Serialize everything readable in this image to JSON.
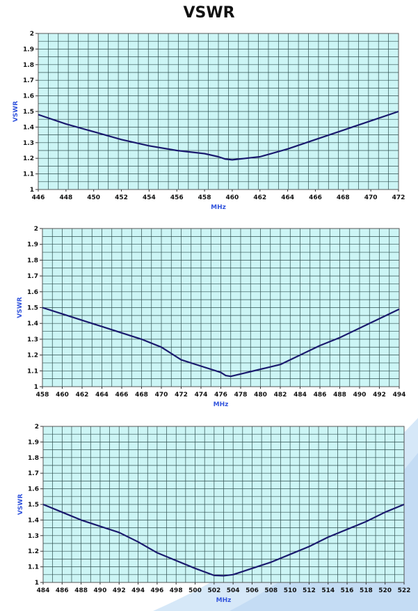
{
  "page": {
    "title": "VSWR"
  },
  "colors": {
    "plot_bg": "#ccf5f5",
    "grid": "#2f4f4f",
    "line": "#1a1a6e",
    "axis_label": "#3355dd",
    "swoosh": "#cfe3f7"
  },
  "chart_data": [
    {
      "type": "line",
      "xlabel": "MHz",
      "ylabel": "VSWR",
      "xlim": [
        446,
        472
      ],
      "ylim": [
        1,
        2
      ],
      "xticks": [
        "446",
        "448",
        "450",
        "452",
        "454",
        "456",
        "458",
        "460",
        "462",
        "464",
        "466",
        "468",
        "470",
        "472"
      ],
      "yticks": [
        "1",
        "1.1",
        "1.2",
        "1.3",
        "1.4",
        "1.5",
        "1.6",
        "1.7",
        "1.8",
        "1.9",
        "2"
      ],
      "grid": true,
      "series": [
        {
          "x": [
            446,
            448,
            450,
            452,
            454,
            456,
            458,
            459,
            459.5,
            460,
            461,
            462,
            464,
            466,
            468,
            470,
            472
          ],
          "y": [
            1.48,
            1.42,
            1.37,
            1.32,
            1.28,
            1.25,
            1.23,
            1.21,
            1.195,
            1.19,
            1.2,
            1.21,
            1.26,
            1.32,
            1.38,
            1.44,
            1.5
          ]
        }
      ]
    },
    {
      "type": "line",
      "xlabel": "MHz",
      "ylabel": "VSWR",
      "xlim": [
        458,
        494
      ],
      "ylim": [
        1,
        2
      ],
      "xticks": [
        "458",
        "460",
        "462",
        "464",
        "466",
        "468",
        "470",
        "472",
        "474",
        "476",
        "478",
        "480",
        "482",
        "484",
        "486",
        "488",
        "490",
        "492",
        "494"
      ],
      "yticks": [
        "1",
        "1.1",
        "1.2",
        "1.3",
        "1.4",
        "1.5",
        "1.6",
        "1.7",
        "1.8",
        "1.9",
        "2"
      ],
      "grid": true,
      "series": [
        {
          "x": [
            458,
            460,
            462,
            464,
            466,
            468,
            470,
            472,
            474,
            476,
            476.5,
            477,
            478,
            480,
            482,
            484,
            486,
            488,
            490,
            492,
            494
          ],
          "y": [
            1.5,
            1.46,
            1.42,
            1.38,
            1.34,
            1.3,
            1.25,
            1.17,
            1.13,
            1.09,
            1.07,
            1.065,
            1.08,
            1.11,
            1.14,
            1.2,
            1.26,
            1.31,
            1.37,
            1.43,
            1.49
          ]
        }
      ]
    },
    {
      "type": "line",
      "xlabel": "MHz",
      "ylabel": "VSWR",
      "xlim": [
        484,
        522
      ],
      "ylim": [
        1,
        2
      ],
      "xticks": [
        "484",
        "486",
        "488",
        "490",
        "492",
        "494",
        "496",
        "498",
        "500",
        "502",
        "504",
        "506",
        "508",
        "510",
        "512",
        "514",
        "516",
        "518",
        "520",
        "522"
      ],
      "yticks": [
        "1",
        "1.1",
        "1.2",
        "1.3",
        "1.4",
        "1.5",
        "1.6",
        "1.7",
        "1.8",
        "1.9",
        "2"
      ],
      "grid": true,
      "series": [
        {
          "x": [
            484,
            486,
            488,
            490,
            492,
            494,
            496,
            498,
            500,
            502,
            503,
            504,
            506,
            508,
            510,
            512,
            514,
            516,
            518,
            520,
            522
          ],
          "y": [
            1.5,
            1.45,
            1.4,
            1.36,
            1.32,
            1.26,
            1.19,
            1.14,
            1.09,
            1.045,
            1.043,
            1.05,
            1.09,
            1.13,
            1.18,
            1.23,
            1.29,
            1.34,
            1.39,
            1.45,
            1.5
          ]
        }
      ]
    }
  ]
}
